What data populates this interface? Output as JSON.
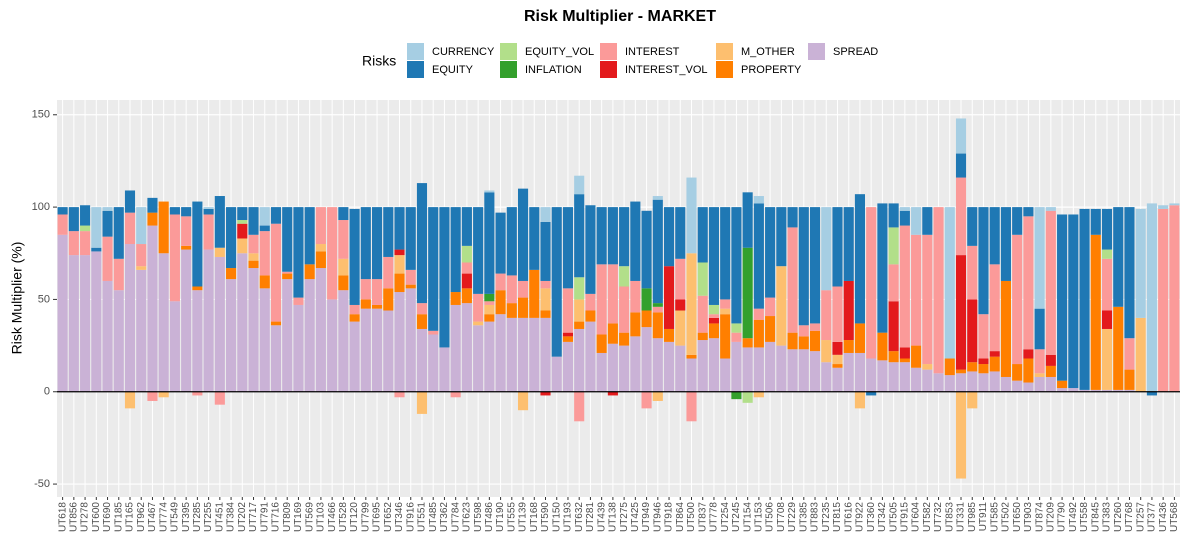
{
  "chart_data": {
    "type": "bar",
    "stacked": true,
    "title": "Risk Multiplier - MARKET",
    "y_label": "Risk Multiplier (%)",
    "legend_title": "Risks",
    "legend_position": "top",
    "grid": true,
    "hline": 0,
    "ylim": [
      -57,
      158
    ],
    "yticks": [
      -50,
      0,
      50,
      100,
      150
    ],
    "categories": [
      "UT618",
      "UT856",
      "UT278",
      "UT600",
      "UT690",
      "UT185",
      "UT165",
      "UT962",
      "UT467",
      "UT774",
      "UT549",
      "UT395",
      "UT285",
      "UT255",
      "UT451",
      "UT384",
      "UT202",
      "UT717",
      "UT791",
      "UT716",
      "UT809",
      "UT169",
      "UT569",
      "UT103",
      "UT466",
      "UT528",
      "UT120",
      "UT799",
      "UT695",
      "UT652",
      "UT346",
      "UT916",
      "UT551",
      "UT485",
      "UT362",
      "UT784",
      "UT623",
      "UT598",
      "UT486",
      "UT190",
      "UT555",
      "UT139",
      "UT168",
      "UT590",
      "UT150",
      "UT193",
      "UT632",
      "UT281",
      "UT439",
      "UT138",
      "UT275",
      "UT425",
      "UT949",
      "UT946",
      "UT918",
      "UT864",
      "UT500",
      "UT837",
      "UT778",
      "UT254",
      "UT245",
      "UT154",
      "UT153",
      "UT506",
      "UT708",
      "UT229",
      "UT385",
      "UT883",
      "UT235",
      "UT815",
      "UT616",
      "UT922",
      "UT360",
      "UT342",
      "UT505",
      "UT915",
      "UT604",
      "UT582",
      "UT732",
      "UT853",
      "UT331",
      "UT985",
      "UT911",
      "UT585",
      "UT502",
      "UT650",
      "UT903",
      "UT874",
      "UT209",
      "UT790",
      "UT492",
      "UT558",
      "UT845",
      "UT383",
      "UT260",
      "UT768",
      "UT257",
      "UT377",
      "UT436",
      "UT568"
    ],
    "series": [
      {
        "name": "CURRENCY",
        "color": "#a6cee3",
        "values": [
          0,
          0,
          0,
          22,
          2,
          0,
          0,
          20,
          0,
          0,
          0,
          0,
          0,
          1,
          0,
          0,
          0,
          0,
          10,
          0,
          0,
          0,
          0,
          0,
          0,
          0,
          0,
          0,
          0,
          0,
          0,
          0,
          0,
          0,
          0,
          0,
          0,
          0,
          1,
          0,
          0,
          0,
          0,
          8,
          0,
          0,
          10,
          0,
          0,
          0,
          0,
          0,
          0,
          2,
          0,
          0,
          41,
          0,
          0,
          0,
          0,
          0,
          4,
          0,
          0,
          0,
          0,
          0,
          45,
          0,
          0,
          0,
          0,
          0,
          0,
          2,
          15,
          0,
          0,
          82,
          19,
          0,
          0,
          0,
          0,
          0,
          0,
          55,
          2,
          0,
          0,
          0,
          0,
          0,
          0,
          0,
          59,
          102,
          2,
          1
        ]
      },
      {
        "name": "EQUITY",
        "color": "#1f78b4",
        "values": [
          4,
          13,
          11,
          2,
          14,
          28,
          12,
          0,
          8,
          0,
          4,
          5,
          46,
          3,
          28,
          33,
          7,
          15,
          3,
          9,
          35,
          49,
          31,
          0,
          0,
          7,
          52,
          39,
          39,
          27,
          23,
          34,
          65,
          67,
          76,
          46,
          21,
          47,
          55,
          33,
          37,
          50,
          34,
          32,
          81,
          44,
          45,
          48,
          31,
          31,
          32,
          43,
          42,
          56,
          32,
          28,
          0,
          30,
          53,
          50,
          63,
          30,
          57,
          49,
          32,
          11,
          64,
          63,
          0,
          43,
          40,
          70,
          -2,
          70,
          13,
          8,
          0,
          15,
          0,
          0,
          13,
          21,
          58,
          31,
          40,
          15,
          5,
          22,
          0,
          90,
          94,
          98,
          14,
          22,
          54,
          71,
          0,
          -2,
          0,
          0
        ]
      },
      {
        "name": "EQUITY_VOL",
        "color": "#b2df8a",
        "values": [
          0,
          0,
          3,
          0,
          0,
          0,
          0,
          0,
          0,
          0,
          0,
          0,
          0,
          0,
          0,
          0,
          2,
          0,
          0,
          0,
          0,
          0,
          0,
          0,
          0,
          0,
          0,
          0,
          0,
          0,
          0,
          0,
          0,
          0,
          0,
          0,
          9,
          0,
          0,
          0,
          0,
          0,
          0,
          0,
          0,
          0,
          12,
          0,
          0,
          0,
          11,
          0,
          0,
          0,
          0,
          0,
          0,
          18,
          5,
          0,
          5,
          -6,
          0,
          0,
          0,
          0,
          0,
          0,
          0,
          0,
          0,
          0,
          0,
          0,
          20,
          0,
          0,
          0,
          0,
          0,
          0,
          0,
          0,
          0,
          0,
          0,
          0,
          0,
          0,
          0,
          0,
          0,
          0,
          5,
          0,
          0,
          0,
          0,
          0,
          0
        ]
      },
      {
        "name": "INFLATION",
        "color": "#33a02c",
        "values": [
          0,
          0,
          0,
          0,
          0,
          0,
          0,
          0,
          0,
          0,
          0,
          0,
          0,
          0,
          0,
          0,
          0,
          0,
          0,
          0,
          0,
          0,
          0,
          0,
          0,
          0,
          0,
          0,
          0,
          0,
          0,
          0,
          0,
          0,
          0,
          0,
          0,
          0,
          4,
          0,
          0,
          0,
          0,
          0,
          0,
          0,
          0,
          0,
          0,
          0,
          0,
          0,
          12,
          2,
          0,
          0,
          0,
          0,
          0,
          0,
          -4,
          49,
          0,
          0,
          0,
          0,
          0,
          0,
          0,
          0,
          0,
          0,
          0,
          0,
          0,
          0,
          0,
          0,
          0,
          0,
          0,
          0,
          0,
          0,
          0,
          0,
          0,
          0,
          0,
          0,
          0,
          0,
          0,
          0,
          0,
          0,
          0,
          0,
          0,
          0
        ]
      },
      {
        "name": "INTEREST",
        "color": "#fb9a99",
        "values": [
          11,
          13,
          13,
          0,
          24,
          17,
          17,
          12,
          -5,
          0,
          47,
          16,
          -2,
          19,
          -7,
          0,
          0,
          10,
          24,
          53,
          1,
          4,
          0,
          20,
          50,
          21,
          5,
          11,
          14,
          17,
          -3,
          8,
          6,
          2,
          0,
          -3,
          6,
          15,
          2,
          9,
          15,
          9,
          0,
          4,
          0,
          24,
          -16,
          9,
          38,
          32,
          25,
          17,
          -9,
          3,
          0,
          22,
          -16,
          20,
          2,
          5,
          5,
          0,
          6,
          10,
          0,
          57,
          6,
          4,
          27,
          30,
          0,
          0,
          82,
          0,
          20,
          66,
          60,
          70,
          90,
          0,
          42,
          29,
          24,
          47,
          0,
          70,
          72,
          13,
          78,
          0,
          0,
          0,
          0,
          28,
          0,
          17,
          0,
          0,
          99,
          101
        ]
      },
      {
        "name": "INTEREST_VOL",
        "color": "#e31a1c",
        "values": [
          0,
          0,
          0,
          0,
          0,
          0,
          0,
          0,
          0,
          0,
          0,
          0,
          0,
          0,
          0,
          0,
          8,
          0,
          0,
          0,
          0,
          0,
          0,
          0,
          0,
          0,
          0,
          0,
          0,
          0,
          3,
          0,
          0,
          0,
          0,
          0,
          8,
          0,
          0,
          0,
          0,
          0,
          0,
          -2,
          0,
          2,
          0,
          0,
          0,
          -2,
          0,
          0,
          0,
          0,
          34,
          6,
          0,
          0,
          3,
          0,
          0,
          0,
          0,
          0,
          0,
          0,
          0,
          0,
          0,
          7,
          32,
          0,
          0,
          0,
          27,
          6,
          0,
          0,
          0,
          0,
          62,
          34,
          3,
          3,
          0,
          0,
          5,
          0,
          6,
          0,
          0,
          0,
          0,
          10,
          0,
          0,
          0,
          0,
          0,
          0
        ]
      },
      {
        "name": "M_OTHER",
        "color": "#fdbf6f",
        "values": [
          0,
          0,
          0,
          0,
          0,
          0,
          -9,
          2,
          0,
          -3,
          0,
          0,
          0,
          0,
          5,
          0,
          8,
          4,
          0,
          0,
          0,
          0,
          0,
          4,
          0,
          9,
          0,
          0,
          0,
          0,
          10,
          0,
          -12,
          0,
          0,
          0,
          0,
          2,
          5,
          0,
          0,
          -10,
          0,
          12,
          0,
          0,
          12,
          0,
          0,
          0,
          0,
          0,
          0,
          -5,
          0,
          19,
          55,
          0,
          0,
          3,
          0,
          0,
          -3,
          0,
          43,
          0,
          0,
          0,
          12,
          5,
          0,
          -9,
          0,
          0,
          0,
          0,
          0,
          3,
          0,
          0,
          -47,
          -9,
          0,
          0,
          0,
          0,
          0,
          2,
          0,
          0,
          0,
          0,
          0,
          33,
          0,
          0,
          40,
          0,
          0,
          0
        ]
      },
      {
        "name": "PROPERTY",
        "color": "#ff7f00",
        "values": [
          0,
          0,
          0,
          0,
          0,
          0,
          0,
          0,
          7,
          28,
          0,
          2,
          2,
          0,
          0,
          6,
          0,
          4,
          7,
          2,
          3,
          0,
          8,
          9,
          0,
          8,
          4,
          5,
          2,
          12,
          10,
          2,
          8,
          0,
          0,
          7,
          8,
          0,
          4,
          13,
          8,
          11,
          26,
          4,
          0,
          3,
          4,
          6,
          10,
          11,
          7,
          13,
          9,
          14,
          7,
          0,
          2,
          4,
          8,
          24,
          0,
          5,
          15,
          14,
          0,
          9,
          7,
          11,
          0,
          2,
          7,
          16,
          0,
          15,
          6,
          2,
          12,
          0,
          0,
          9,
          2,
          5,
          5,
          8,
          52,
          9,
          13,
          0,
          6,
          4,
          0,
          0,
          84,
          0,
          45,
          11,
          0,
          0,
          0,
          0
        ]
      },
      {
        "name": "SPREAD",
        "color": "#cab2d6",
        "values": [
          85,
          74,
          74,
          76,
          60,
          55,
          80,
          66,
          90,
          75,
          49,
          77,
          55,
          77,
          73,
          61,
          75,
          67,
          56,
          36,
          61,
          47,
          61,
          67,
          50,
          55,
          38,
          45,
          45,
          44,
          54,
          56,
          34,
          31,
          24,
          47,
          48,
          36,
          38,
          42,
          40,
          40,
          40,
          40,
          19,
          27,
          34,
          38,
          21,
          26,
          25,
          30,
          35,
          29,
          27,
          25,
          18,
          28,
          29,
          18,
          27,
          24,
          24,
          27,
          25,
          23,
          23,
          22,
          16,
          13,
          21,
          21,
          18,
          17,
          16,
          16,
          13,
          12,
          10,
          9,
          10,
          11,
          10,
          11,
          8,
          6,
          5,
          8,
          8,
          2,
          2,
          1,
          1,
          1,
          1,
          1,
          0,
          0,
          0,
          0
        ]
      }
    ]
  }
}
